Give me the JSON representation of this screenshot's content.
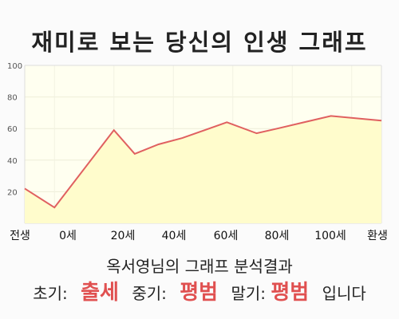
{
  "title": "재미로 보는 당신의 인생 그래프",
  "chart_data": {
    "type": "area",
    "title": "재미로 보는 당신의 인생 그래프",
    "x": [
      -10,
      0,
      20,
      27,
      35,
      43,
      58,
      68,
      75,
      93,
      110
    ],
    "values": [
      22,
      10,
      59,
      44,
      50,
      54,
      64,
      57,
      60,
      68,
      65
    ],
    "x_tick_labels": [
      "전생",
      "0세",
      "20세",
      "40세",
      "60세",
      "80세",
      "100세",
      "환생"
    ],
    "y_ticks": [
      20,
      40,
      60,
      80,
      100
    ],
    "ylim": [
      0,
      100
    ],
    "grid": true,
    "line_color": "#e06060",
    "fill_color": "#fffccc",
    "plot_bg": "#fffff0"
  },
  "summary": "옥서영님의 그래프 분석결과",
  "result": {
    "early_label": "초기:",
    "early_value": "출세",
    "middle_label": "중기:",
    "middle_value": "평범",
    "late_label": "말기:",
    "late_value": "평범",
    "ending": "입니다"
  }
}
